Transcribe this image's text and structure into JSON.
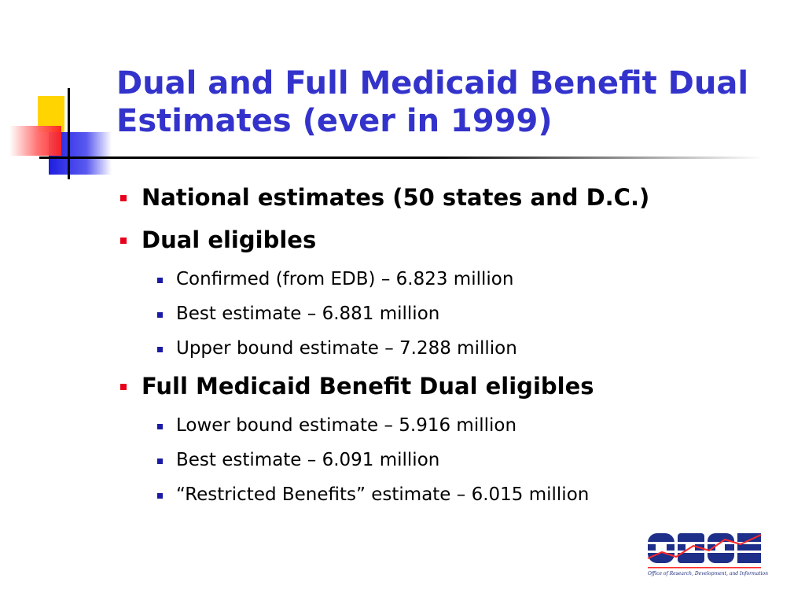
{
  "slide": {
    "title_line1": "Dual and Full Medicaid Benefit Dual",
    "title_line2": "Estimates (ever in 1999)",
    "bullets": [
      {
        "text": "National estimates (50 states and D.C.)"
      },
      {
        "text": "Dual eligibles",
        "sub": [
          "Confirmed (from EDB) – 6.823 million",
          "Best estimate – 6.881 million",
          "Upper bound estimate – 7.288 million"
        ]
      },
      {
        "text": "Full Medicaid Benefit Dual eligibles",
        "sub": [
          "Lower bound estimate – 5.916 million",
          "Best estimate – 6.091 million",
          "“Restricted Benefits” estimate – 6.015 million"
        ]
      }
    ]
  },
  "logo": {
    "name": "ORDI",
    "caption": "Office of Research, Development, and Information"
  },
  "colors": {
    "title": "#3333cc",
    "bullet_level1": "#e8001c",
    "bullet_level2": "#1a1aa6",
    "deco_yellow": "#ffd400",
    "deco_red": "#ff3b3b",
    "deco_blue": "#2a2ae0"
  }
}
